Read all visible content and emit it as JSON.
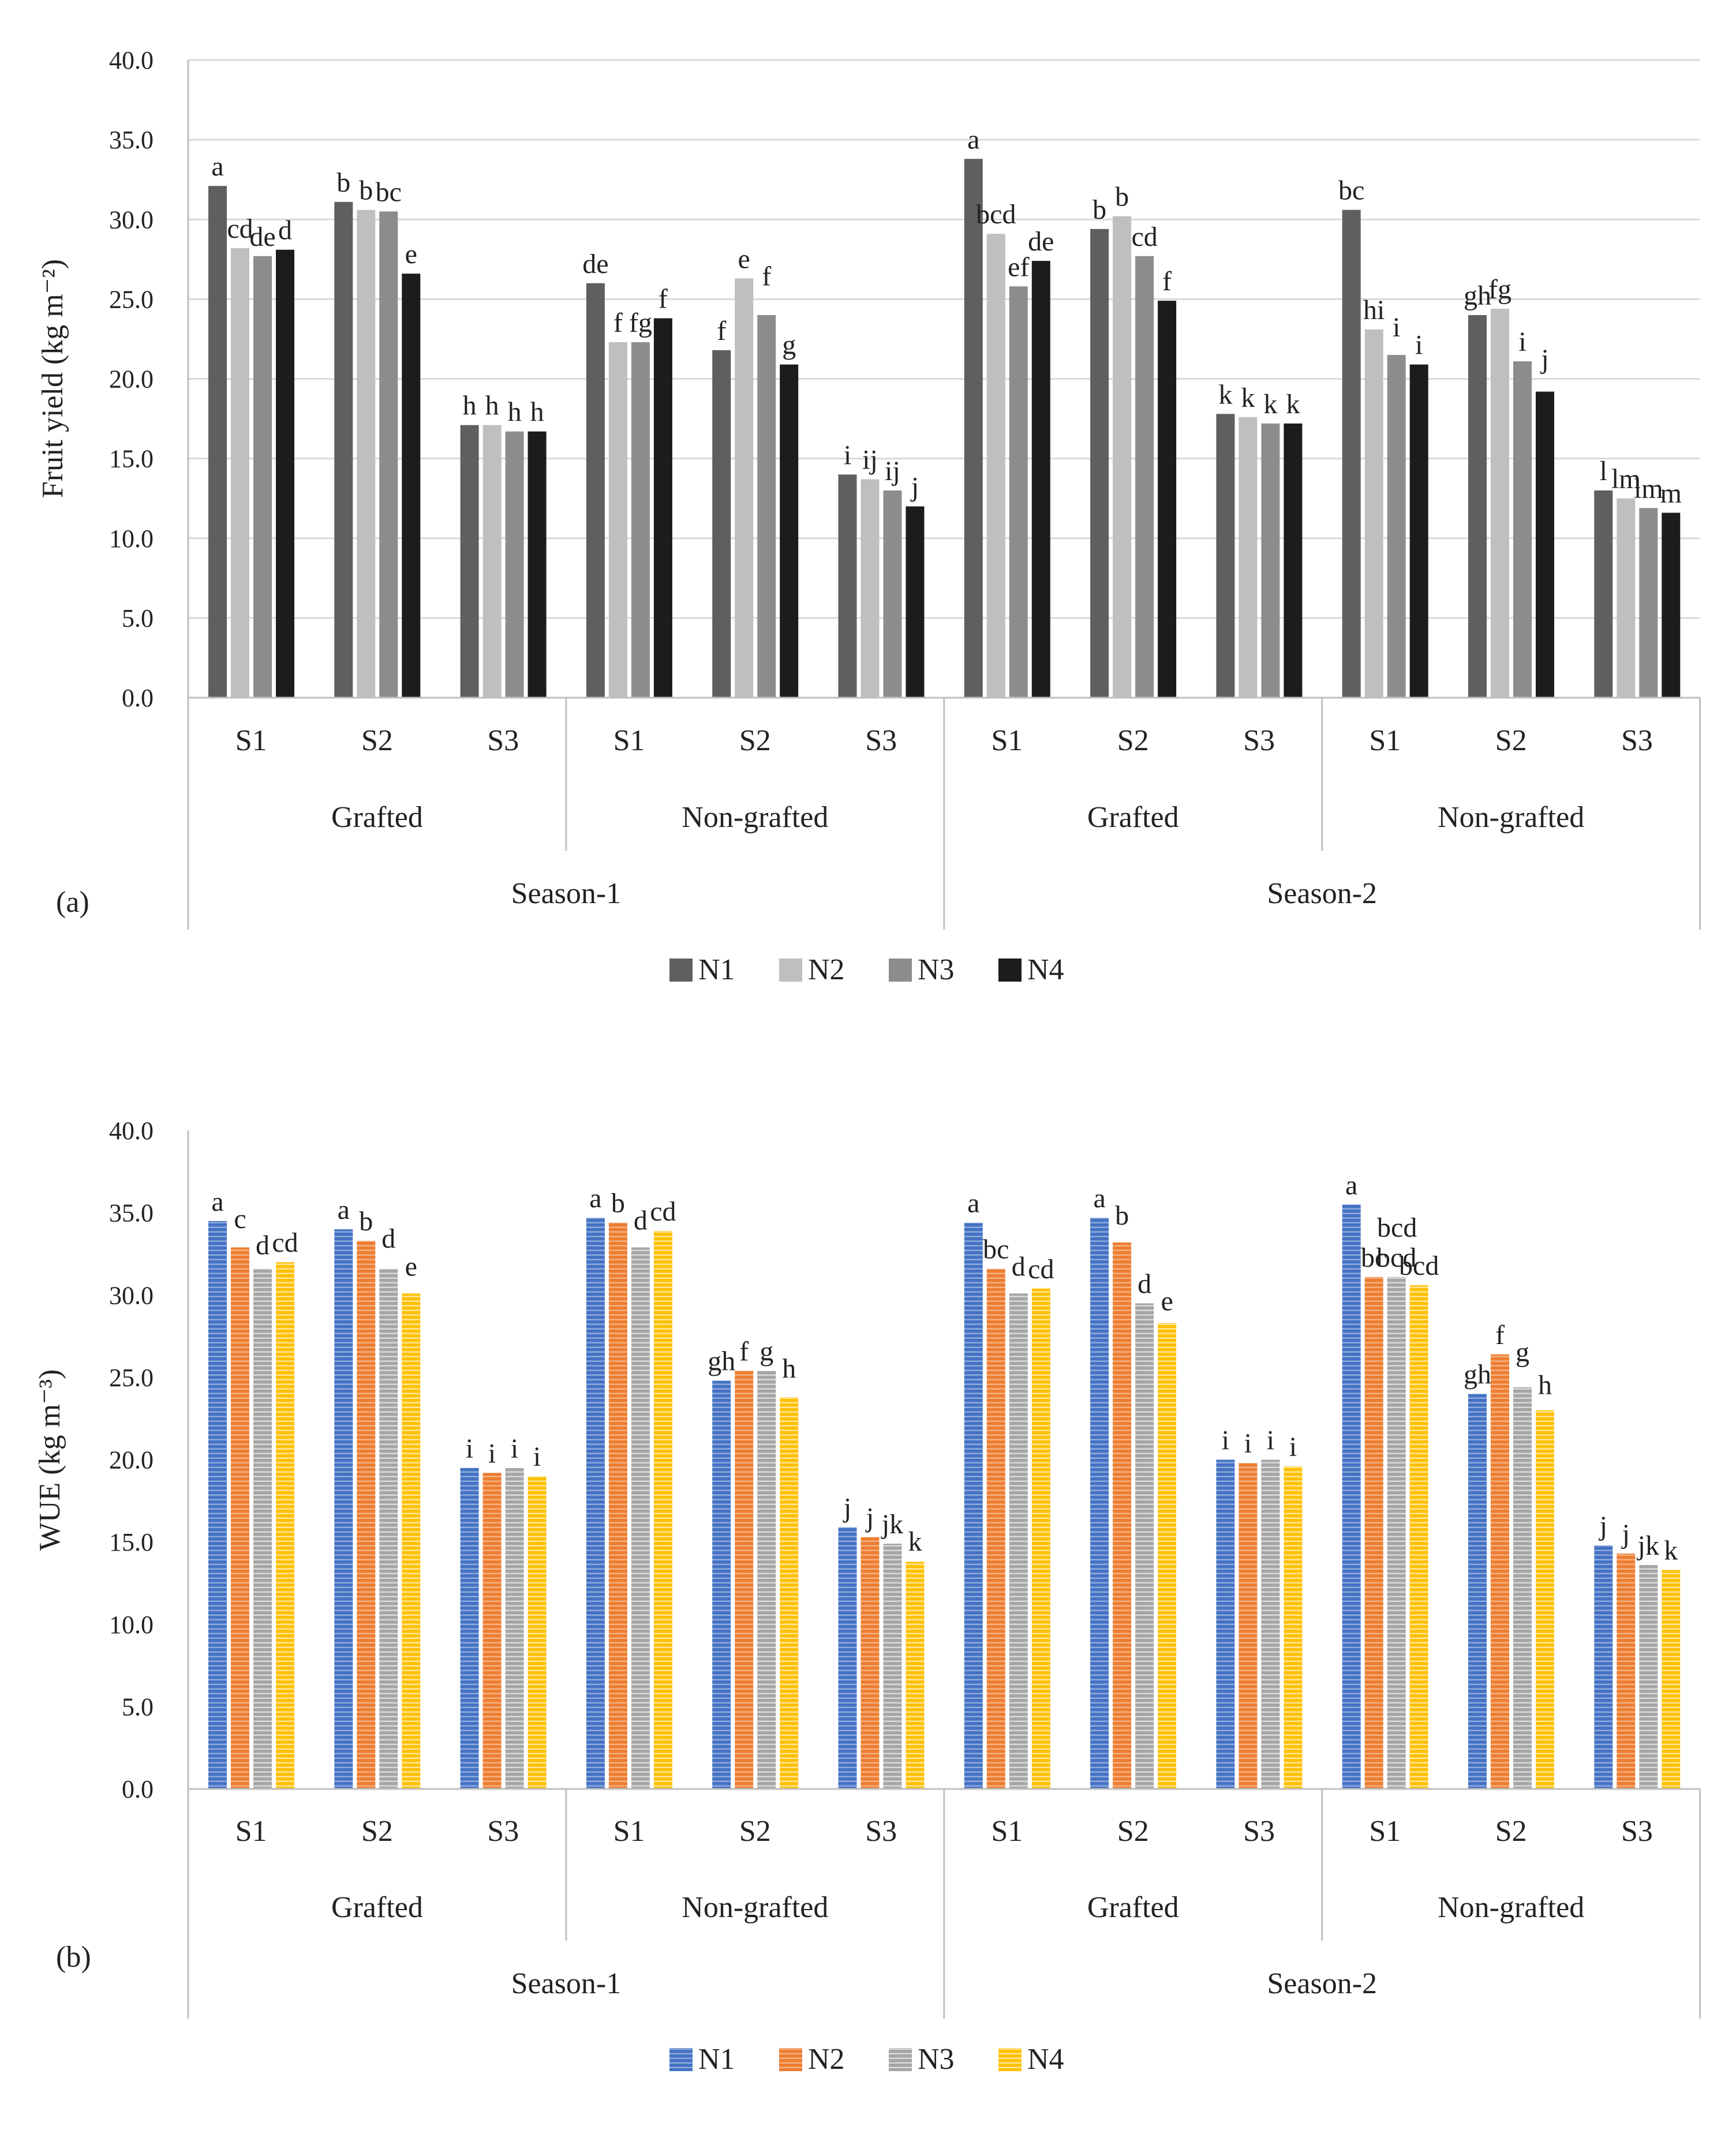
{
  "chart_data": [
    {
      "id": "a",
      "type": "bar",
      "panel_label": "(a)",
      "ylabel": "Fruit yield (kg m⁻²)",
      "ylim": [
        0,
        40
      ],
      "yticks": [
        "0.0",
        "5.0",
        "10.0",
        "15.0",
        "20.0",
        "25.0",
        "30.0",
        "35.0",
        "40.0"
      ],
      "grid": true,
      "legend_position": "bottom",
      "seasons": [
        "Season-1",
        "Season-2"
      ],
      "groups": [
        "Grafted",
        "Non-grafted"
      ],
      "categories": [
        "S1",
        "S2",
        "S3"
      ],
      "series_names": [
        "N1",
        "N2",
        "N3",
        "N4"
      ],
      "series_colors": [
        "#5f5f5f",
        "#bfbfbf",
        "#8c8c8c",
        "#1c1c1c"
      ],
      "pattern": "solid",
      "values": [
        [
          32.1,
          28.2,
          27.7,
          28.1
        ],
        [
          31.1,
          30.6,
          30.5,
          26.6
        ],
        [
          17.1,
          17.1,
          16.7,
          16.7
        ],
        [
          26.0,
          22.3,
          22.3,
          23.8
        ],
        [
          21.8,
          26.3,
          24.0,
          20.9
        ],
        [
          14.0,
          13.7,
          13.0,
          12.0
        ],
        [
          33.8,
          29.1,
          25.8,
          27.4
        ],
        [
          29.4,
          30.2,
          27.7,
          24.9
        ],
        [
          17.8,
          17.6,
          17.2,
          17.2
        ],
        [
          30.6,
          23.1,
          21.5,
          20.9
        ],
        [
          24.0,
          24.4,
          21.1,
          19.2
        ],
        [
          13.0,
          12.5,
          11.9,
          11.6
        ]
      ],
      "letters": [
        [
          "a",
          "cd",
          "de",
          "d"
        ],
        [
          "b",
          "b",
          "bc",
          "e"
        ],
        [
          "h",
          "h",
          "h",
          "h"
        ],
        [
          "de",
          "f",
          "fg",
          "f"
        ],
        [
          "f",
          "e",
          "f",
          "g"
        ],
        [
          "i",
          "ij",
          "ij",
          "j"
        ],
        [
          "a",
          "bcd",
          "ef",
          "de"
        ],
        [
          "b",
          "b",
          "cd",
          "f"
        ],
        [
          "k",
          "k",
          "k",
          "k"
        ],
        [
          "bc",
          "hi",
          "i",
          "i"
        ],
        [
          "gh",
          "fg",
          "i",
          "j"
        ],
        [
          "l",
          "lm",
          "lm",
          "m"
        ]
      ]
    },
    {
      "id": "b",
      "type": "bar",
      "panel_label": "(b)",
      "ylabel": "WUE (kg m⁻³)",
      "ylim": [
        0,
        40
      ],
      "yticks": [
        "0.0",
        "5.0",
        "10.0",
        "15.0",
        "20.0",
        "25.0",
        "30.0",
        "35.0",
        "40.0"
      ],
      "grid": false,
      "legend_position": "bottom",
      "seasons": [
        "Season-1",
        "Season-2"
      ],
      "groups": [
        "Grafted",
        "Non-grafted"
      ],
      "categories": [
        "S1",
        "S2",
        "S3"
      ],
      "series_names": [
        "N1",
        "N2",
        "N3",
        "N4"
      ],
      "series_colors": [
        "#4472c4",
        "#ed7d31",
        "#a5a5a5",
        "#ffc000"
      ],
      "pattern": "horizontal-stripes",
      "values": [
        [
          34.5,
          32.9,
          31.6,
          32.0
        ],
        [
          34.0,
          33.3,
          31.6,
          30.1
        ],
        [
          19.5,
          19.2,
          19.5,
          19.0
        ],
        [
          34.7,
          34.4,
          32.9,
          33.9
        ],
        [
          24.8,
          25.4,
          25.4,
          23.8
        ],
        [
          15.9,
          15.3,
          14.9,
          13.8
        ],
        [
          34.4,
          31.6,
          30.1,
          30.4
        ],
        [
          34.7,
          33.2,
          29.5,
          28.3
        ],
        [
          20.0,
          19.8,
          20.0,
          19.6
        ],
        [
          35.5,
          31.1,
          31.1,
          30.6
        ],
        [
          24.0,
          26.4,
          24.4,
          23.0
        ],
        [
          14.8,
          14.3,
          13.6,
          13.3
        ]
      ],
      "letters": [
        [
          "a",
          "c",
          "d",
          "cd"
        ],
        [
          "a",
          "b",
          "d",
          "e"
        ],
        [
          "i",
          "i",
          "i",
          "i"
        ],
        [
          "a",
          "b",
          "d",
          "cd"
        ],
        [
          "gh",
          "f",
          "g",
          "h"
        ],
        [
          "j",
          "j",
          "jk",
          "k"
        ],
        [
          "a",
          "bc",
          "d",
          "cd"
        ],
        [
          "a",
          "b",
          "d",
          "e"
        ],
        [
          "i",
          "i",
          "i",
          "i"
        ],
        [
          "a",
          "bc",
          "bcd",
          "bcd"
        ],
        [
          "gh",
          "f",
          "g",
          "h"
        ],
        [
          "j",
          "j",
          "jk",
          "k"
        ]
      ],
      "extra_letters": [
        {
          "cluster": 9,
          "bar": 1,
          "text": "bcd"
        }
      ]
    }
  ]
}
